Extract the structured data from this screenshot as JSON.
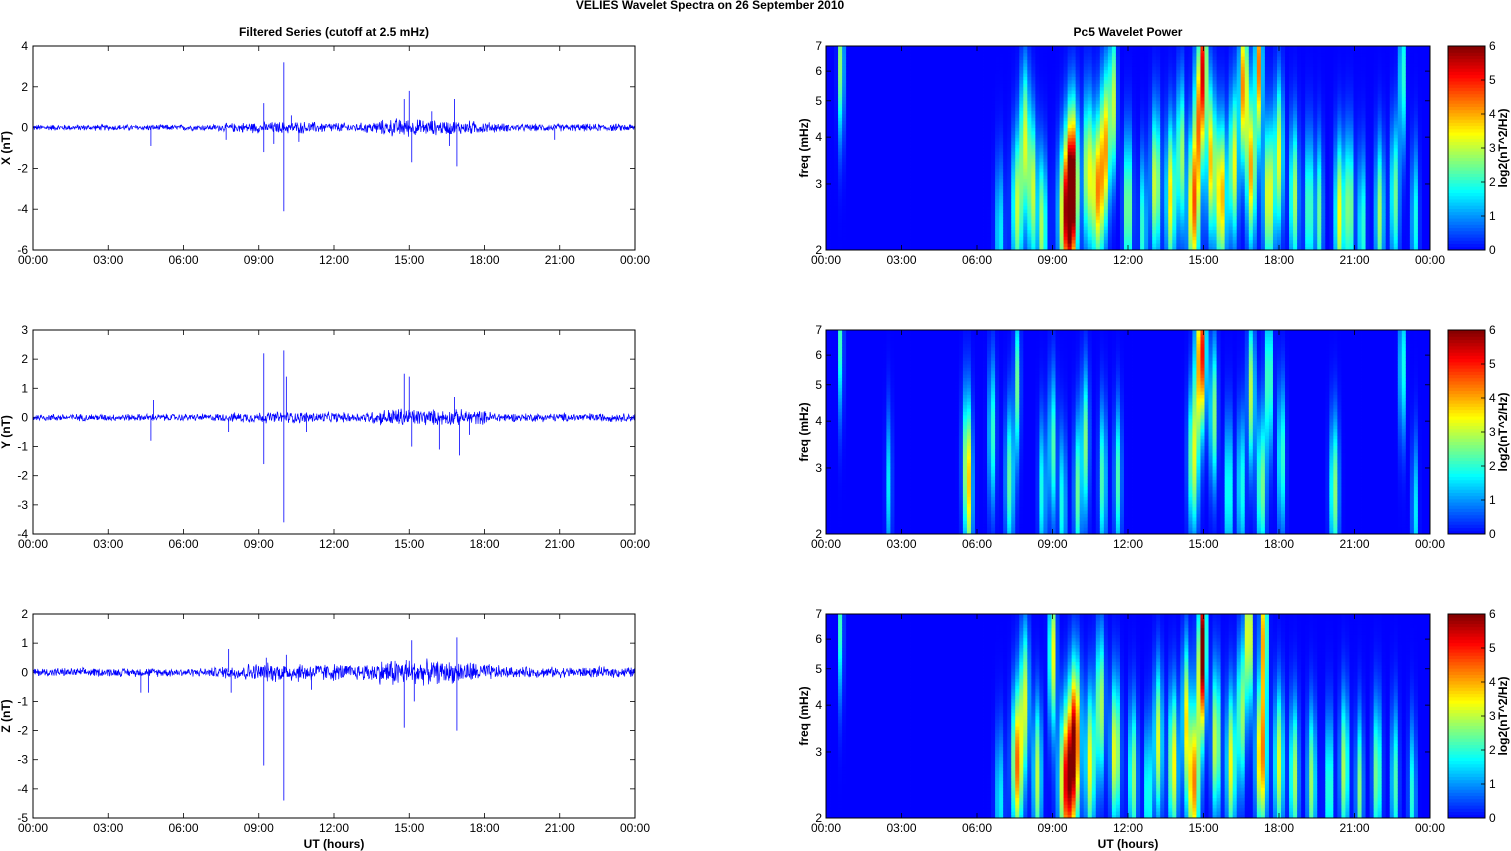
{
  "figure_title": "VELIES Wavelet Spectra on 26 September 2010",
  "chart_data": [
    {
      "type": "line",
      "title": "Filtered Series (cutoff at 2.5 mHz)",
      "ylabel": "X (nT)",
      "xlabel": "",
      "xticks": [
        "00:00",
        "03:00",
        "06:00",
        "09:00",
        "12:00",
        "15:00",
        "18:00",
        "21:00",
        "00:00"
      ],
      "xlim": [
        0,
        24
      ],
      "ylim": [
        -6,
        4
      ],
      "yticks": [
        -6,
        -4,
        -2,
        0,
        2,
        4
      ],
      "color": "#0000ff",
      "noise": [
        [
          0,
          0.12
        ],
        [
          7,
          0.12
        ],
        [
          8.5,
          0.22
        ],
        [
          10.5,
          0.25
        ],
        [
          13,
          0.18
        ],
        [
          14.5,
          0.38
        ],
        [
          16,
          0.3
        ],
        [
          17.5,
          0.28
        ],
        [
          19,
          0.15
        ],
        [
          24,
          0.15
        ]
      ],
      "spikes": [
        [
          4.7,
          -0.9
        ],
        [
          7.7,
          -0.6
        ],
        [
          9.2,
          1.2
        ],
        [
          9.2,
          -1.2
        ],
        [
          9.6,
          -0.8
        ],
        [
          10.0,
          3.2
        ],
        [
          10.0,
          -4.1
        ],
        [
          10.3,
          0.6
        ],
        [
          10.6,
          -0.7
        ],
        [
          14.8,
          1.4
        ],
        [
          15.0,
          1.8
        ],
        [
          15.1,
          -1.7
        ],
        [
          15.9,
          0.8
        ],
        [
          16.8,
          1.4
        ],
        [
          16.9,
          -1.9
        ],
        [
          16.6,
          -0.9
        ],
        [
          20.8,
          -0.6
        ]
      ]
    },
    {
      "type": "line",
      "title": "",
      "ylabel": "Y (nT)",
      "xlabel": "",
      "xticks": [
        "00:00",
        "03:00",
        "06:00",
        "09:00",
        "12:00",
        "15:00",
        "18:00",
        "21:00",
        "00:00"
      ],
      "xlim": [
        0,
        24
      ],
      "ylim": [
        -4,
        3
      ],
      "yticks": [
        -4,
        -3,
        -2,
        -1,
        0,
        1,
        2,
        3
      ],
      "color": "#0000ff",
      "noise": [
        [
          0,
          0.1
        ],
        [
          7,
          0.1
        ],
        [
          8.5,
          0.15
        ],
        [
          10.5,
          0.17
        ],
        [
          13,
          0.13
        ],
        [
          14.5,
          0.28
        ],
        [
          16,
          0.22
        ],
        [
          17.5,
          0.22
        ],
        [
          19,
          0.12
        ],
        [
          24,
          0.12
        ]
      ],
      "spikes": [
        [
          4.7,
          -0.8
        ],
        [
          4.8,
          0.6
        ],
        [
          7.8,
          -0.5
        ],
        [
          9.2,
          2.2
        ],
        [
          9.2,
          -1.6
        ],
        [
          10.0,
          2.3
        ],
        [
          10.0,
          -3.6
        ],
        [
          10.1,
          1.4
        ],
        [
          10.9,
          -0.5
        ],
        [
          14.8,
          1.5
        ],
        [
          15.0,
          1.4
        ],
        [
          15.1,
          -1.0
        ],
        [
          16.2,
          -1.1
        ],
        [
          16.8,
          0.7
        ],
        [
          17.0,
          -1.3
        ],
        [
          17.4,
          -0.6
        ]
      ]
    },
    {
      "type": "line",
      "title": "",
      "ylabel": "Z (nT)",
      "xlabel": "UT (hours)",
      "xticks": [
        "00:00",
        "03:00",
        "06:00",
        "09:00",
        "12:00",
        "15:00",
        "18:00",
        "21:00",
        "00:00"
      ],
      "xlim": [
        0,
        24
      ],
      "ylim": [
        -5,
        2
      ],
      "yticks": [
        -5,
        -4,
        -3,
        -2,
        -1,
        0,
        1,
        2
      ],
      "color": "#0000ff",
      "noise": [
        [
          0,
          0.12
        ],
        [
          7,
          0.12
        ],
        [
          8.5,
          0.25
        ],
        [
          10.5,
          0.28
        ],
        [
          13,
          0.22
        ],
        [
          14.5,
          0.42
        ],
        [
          16,
          0.32
        ],
        [
          17.5,
          0.3
        ],
        [
          19,
          0.15
        ],
        [
          24,
          0.15
        ]
      ],
      "spikes": [
        [
          4.3,
          -0.7
        ],
        [
          4.6,
          -0.7
        ],
        [
          7.8,
          0.8
        ],
        [
          7.9,
          -0.7
        ],
        [
          9.2,
          -3.2
        ],
        [
          9.3,
          0.5
        ],
        [
          10.0,
          -4.4
        ],
        [
          10.1,
          0.6
        ],
        [
          11.1,
          -0.6
        ],
        [
          14.8,
          -1.9
        ],
        [
          15.1,
          1.1
        ],
        [
          15.2,
          -1.0
        ],
        [
          16.9,
          1.2
        ],
        [
          16.9,
          -2.0
        ]
      ]
    },
    {
      "type": "heatmap",
      "title": "Pc5 Wavelet Power",
      "ylabel": "freq (mHz)",
      "xlabel": "",
      "xticks": [
        "00:00",
        "03:00",
        "06:00",
        "09:00",
        "12:00",
        "15:00",
        "18:00",
        "21:00",
        "00:00"
      ],
      "xlim": [
        0,
        24
      ],
      "ylim": [
        2,
        7
      ],
      "yscale": "log",
      "yticks": [
        2,
        3,
        4,
        5,
        6,
        7
      ],
      "colorbar_label": "log2(nT^2/Hz)",
      "clim": [
        0,
        6
      ],
      "cticks": [
        0,
        1,
        2,
        3,
        4,
        5,
        6
      ],
      "blobs": [
        [
          0.6,
          6.3,
          3.0,
          0.08
        ],
        [
          6.9,
          2.2,
          1.8,
          0.12
        ],
        [
          7.6,
          2.6,
          3.0,
          0.15
        ],
        [
          7.9,
          4.0,
          3.0,
          0.12
        ],
        [
          8.2,
          2.9,
          3.2,
          0.12
        ],
        [
          8.6,
          2.3,
          3.0,
          0.12
        ],
        [
          9.6,
          2.5,
          5.6,
          0.22
        ],
        [
          9.8,
          3.2,
          4.5,
          0.15
        ],
        [
          10.4,
          3.3,
          3.2,
          0.12
        ],
        [
          10.8,
          2.9,
          4.2,
          0.18
        ],
        [
          11.1,
          3.9,
          3.5,
          0.12
        ],
        [
          11.4,
          5.0,
          3.2,
          0.1
        ],
        [
          12.0,
          2.6,
          3.0,
          0.12
        ],
        [
          12.6,
          2.3,
          2.2,
          0.1
        ],
        [
          13.1,
          3.0,
          3.4,
          0.13
        ],
        [
          13.7,
          2.8,
          3.6,
          0.13
        ],
        [
          14.1,
          3.6,
          3.2,
          0.1
        ],
        [
          14.6,
          2.6,
          4.4,
          0.16
        ],
        [
          14.8,
          4.5,
          3.6,
          0.12
        ],
        [
          15.0,
          6.3,
          4.8,
          0.1
        ],
        [
          15.3,
          3.5,
          3.8,
          0.12
        ],
        [
          15.7,
          2.8,
          4.2,
          0.15
        ],
        [
          16.2,
          3.4,
          3.5,
          0.12
        ],
        [
          16.6,
          5.5,
          4.4,
          0.12
        ],
        [
          16.9,
          3.3,
          4.0,
          0.13
        ],
        [
          17.2,
          6.2,
          4.3,
          0.1
        ],
        [
          17.6,
          2.8,
          3.6,
          0.15
        ],
        [
          18.0,
          3.6,
          3.2,
          0.12
        ],
        [
          18.6,
          2.8,
          3.0,
          0.12
        ],
        [
          19.2,
          2.6,
          2.6,
          0.12
        ],
        [
          19.6,
          2.5,
          2.4,
          0.1
        ],
        [
          20.4,
          2.5,
          3.4,
          0.13
        ],
        [
          20.8,
          2.6,
          3.0,
          0.12
        ],
        [
          21.3,
          2.3,
          2.4,
          0.1
        ],
        [
          22.0,
          2.5,
          2.8,
          0.12
        ],
        [
          22.6,
          2.8,
          2.6,
          0.12
        ],
        [
          23.4,
          2.4,
          2.0,
          0.1
        ],
        [
          22.9,
          5.8,
          2.6,
          0.08
        ]
      ]
    },
    {
      "type": "heatmap",
      "title": "",
      "ylabel": "freq (mHz)",
      "xlabel": "",
      "xticks": [
        "00:00",
        "03:00",
        "06:00",
        "09:00",
        "12:00",
        "15:00",
        "18:00",
        "21:00",
        "00:00"
      ],
      "xlim": [
        0,
        24
      ],
      "ylim": [
        2,
        7
      ],
      "yscale": "log",
      "yticks": [
        2,
        3,
        4,
        5,
        6,
        7
      ],
      "colorbar_label": "log2(nT^2/Hz)",
      "clim": [
        0,
        6
      ],
      "cticks": [
        0,
        1,
        2,
        3,
        4,
        5,
        6
      ],
      "blobs": [
        [
          0.6,
          6.6,
          2.6,
          0.06
        ],
        [
          2.5,
          2.7,
          1.6,
          0.08
        ],
        [
          5.6,
          3.1,
          3.0,
          0.12
        ],
        [
          5.7,
          2.3,
          1.8,
          0.1
        ],
        [
          6.6,
          3.7,
          2.2,
          0.1
        ],
        [
          7.3,
          2.8,
          2.4,
          0.12
        ],
        [
          7.6,
          5.0,
          2.4,
          0.08
        ],
        [
          8.6,
          2.6,
          2.0,
          0.1
        ],
        [
          9.0,
          3.4,
          2.4,
          0.1
        ],
        [
          9.4,
          2.4,
          2.0,
          0.1
        ],
        [
          10.0,
          2.6,
          2.4,
          0.1
        ],
        [
          10.3,
          3.5,
          2.6,
          0.1
        ],
        [
          11.0,
          2.8,
          2.4,
          0.1
        ],
        [
          11.6,
          2.8,
          2.2,
          0.1
        ],
        [
          14.6,
          3.2,
          3.2,
          0.14
        ],
        [
          14.8,
          5.8,
          3.6,
          0.1
        ],
        [
          15.0,
          6.2,
          4.6,
          0.08
        ],
        [
          15.4,
          4.2,
          2.8,
          0.1
        ],
        [
          16.0,
          2.6,
          2.4,
          0.1
        ],
        [
          16.5,
          2.7,
          2.2,
          0.1
        ],
        [
          16.9,
          4.8,
          3.0,
          0.1
        ],
        [
          17.3,
          2.7,
          2.8,
          0.12
        ],
        [
          17.6,
          5.2,
          2.8,
          0.1
        ],
        [
          18.1,
          3.2,
          2.4,
          0.1
        ],
        [
          20.2,
          2.6,
          2.8,
          0.12
        ],
        [
          22.9,
          5.6,
          2.4,
          0.08
        ],
        [
          23.4,
          2.3,
          1.8,
          0.08
        ]
      ]
    },
    {
      "type": "heatmap",
      "title": "",
      "ylabel": "freq (mHz)",
      "xlabel": "UT (hours)",
      "xticks": [
        "00:00",
        "03:00",
        "06:00",
        "09:00",
        "12:00",
        "15:00",
        "18:00",
        "21:00",
        "00:00"
      ],
      "xlim": [
        0,
        24
      ],
      "ylim": [
        2,
        7
      ],
      "yscale": "log",
      "yticks": [
        2,
        3,
        4,
        5,
        6,
        7
      ],
      "colorbar_label": "log2(nT^2/Hz)",
      "clim": [
        0,
        6
      ],
      "cticks": [
        0,
        1,
        2,
        3,
        4,
        5,
        6
      ],
      "blobs": [
        [
          0.6,
          6.6,
          2.6,
          0.06
        ],
        [
          6.9,
          2.2,
          1.8,
          0.12
        ],
        [
          7.6,
          2.8,
          4.4,
          0.15
        ],
        [
          7.9,
          4.2,
          3.0,
          0.12
        ],
        [
          8.4,
          2.6,
          3.0,
          0.12
        ],
        [
          9.0,
          5.5,
          3.6,
          0.1
        ],
        [
          9.6,
          2.5,
          5.6,
          0.22
        ],
        [
          9.9,
          3.4,
          4.5,
          0.15
        ],
        [
          10.5,
          2.8,
          3.4,
          0.13
        ],
        [
          10.9,
          4.0,
          3.2,
          0.12
        ],
        [
          11.5,
          3.0,
          3.6,
          0.13
        ],
        [
          12.2,
          2.6,
          2.8,
          0.12
        ],
        [
          12.8,
          2.3,
          2.4,
          0.1
        ],
        [
          13.2,
          3.2,
          3.2,
          0.12
        ],
        [
          13.8,
          2.8,
          3.6,
          0.13
        ],
        [
          14.3,
          3.8,
          3.2,
          0.1
        ],
        [
          14.6,
          2.5,
          4.4,
          0.16
        ],
        [
          14.9,
          4.8,
          3.8,
          0.12
        ],
        [
          15.0,
          6.4,
          4.2,
          0.08
        ],
        [
          15.5,
          3.2,
          3.4,
          0.12
        ],
        [
          16.1,
          2.8,
          3.4,
          0.13
        ],
        [
          16.5,
          3.8,
          3.2,
          0.1
        ],
        [
          16.8,
          6.2,
          4.2,
          0.1
        ],
        [
          17.3,
          2.9,
          4.4,
          0.15
        ],
        [
          17.4,
          6.2,
          4.0,
          0.1
        ],
        [
          18.0,
          2.8,
          3.2,
          0.13
        ],
        [
          18.6,
          2.6,
          3.0,
          0.12
        ],
        [
          19.3,
          2.5,
          2.8,
          0.12
        ],
        [
          20.0,
          2.4,
          2.6,
          0.1
        ],
        [
          20.6,
          2.7,
          3.0,
          0.12
        ],
        [
          21.2,
          2.4,
          2.6,
          0.1
        ],
        [
          21.9,
          2.6,
          2.8,
          0.12
        ],
        [
          22.6,
          2.5,
          2.4,
          0.1
        ],
        [
          23.3,
          2.3,
          2.0,
          0.1
        ]
      ]
    }
  ]
}
